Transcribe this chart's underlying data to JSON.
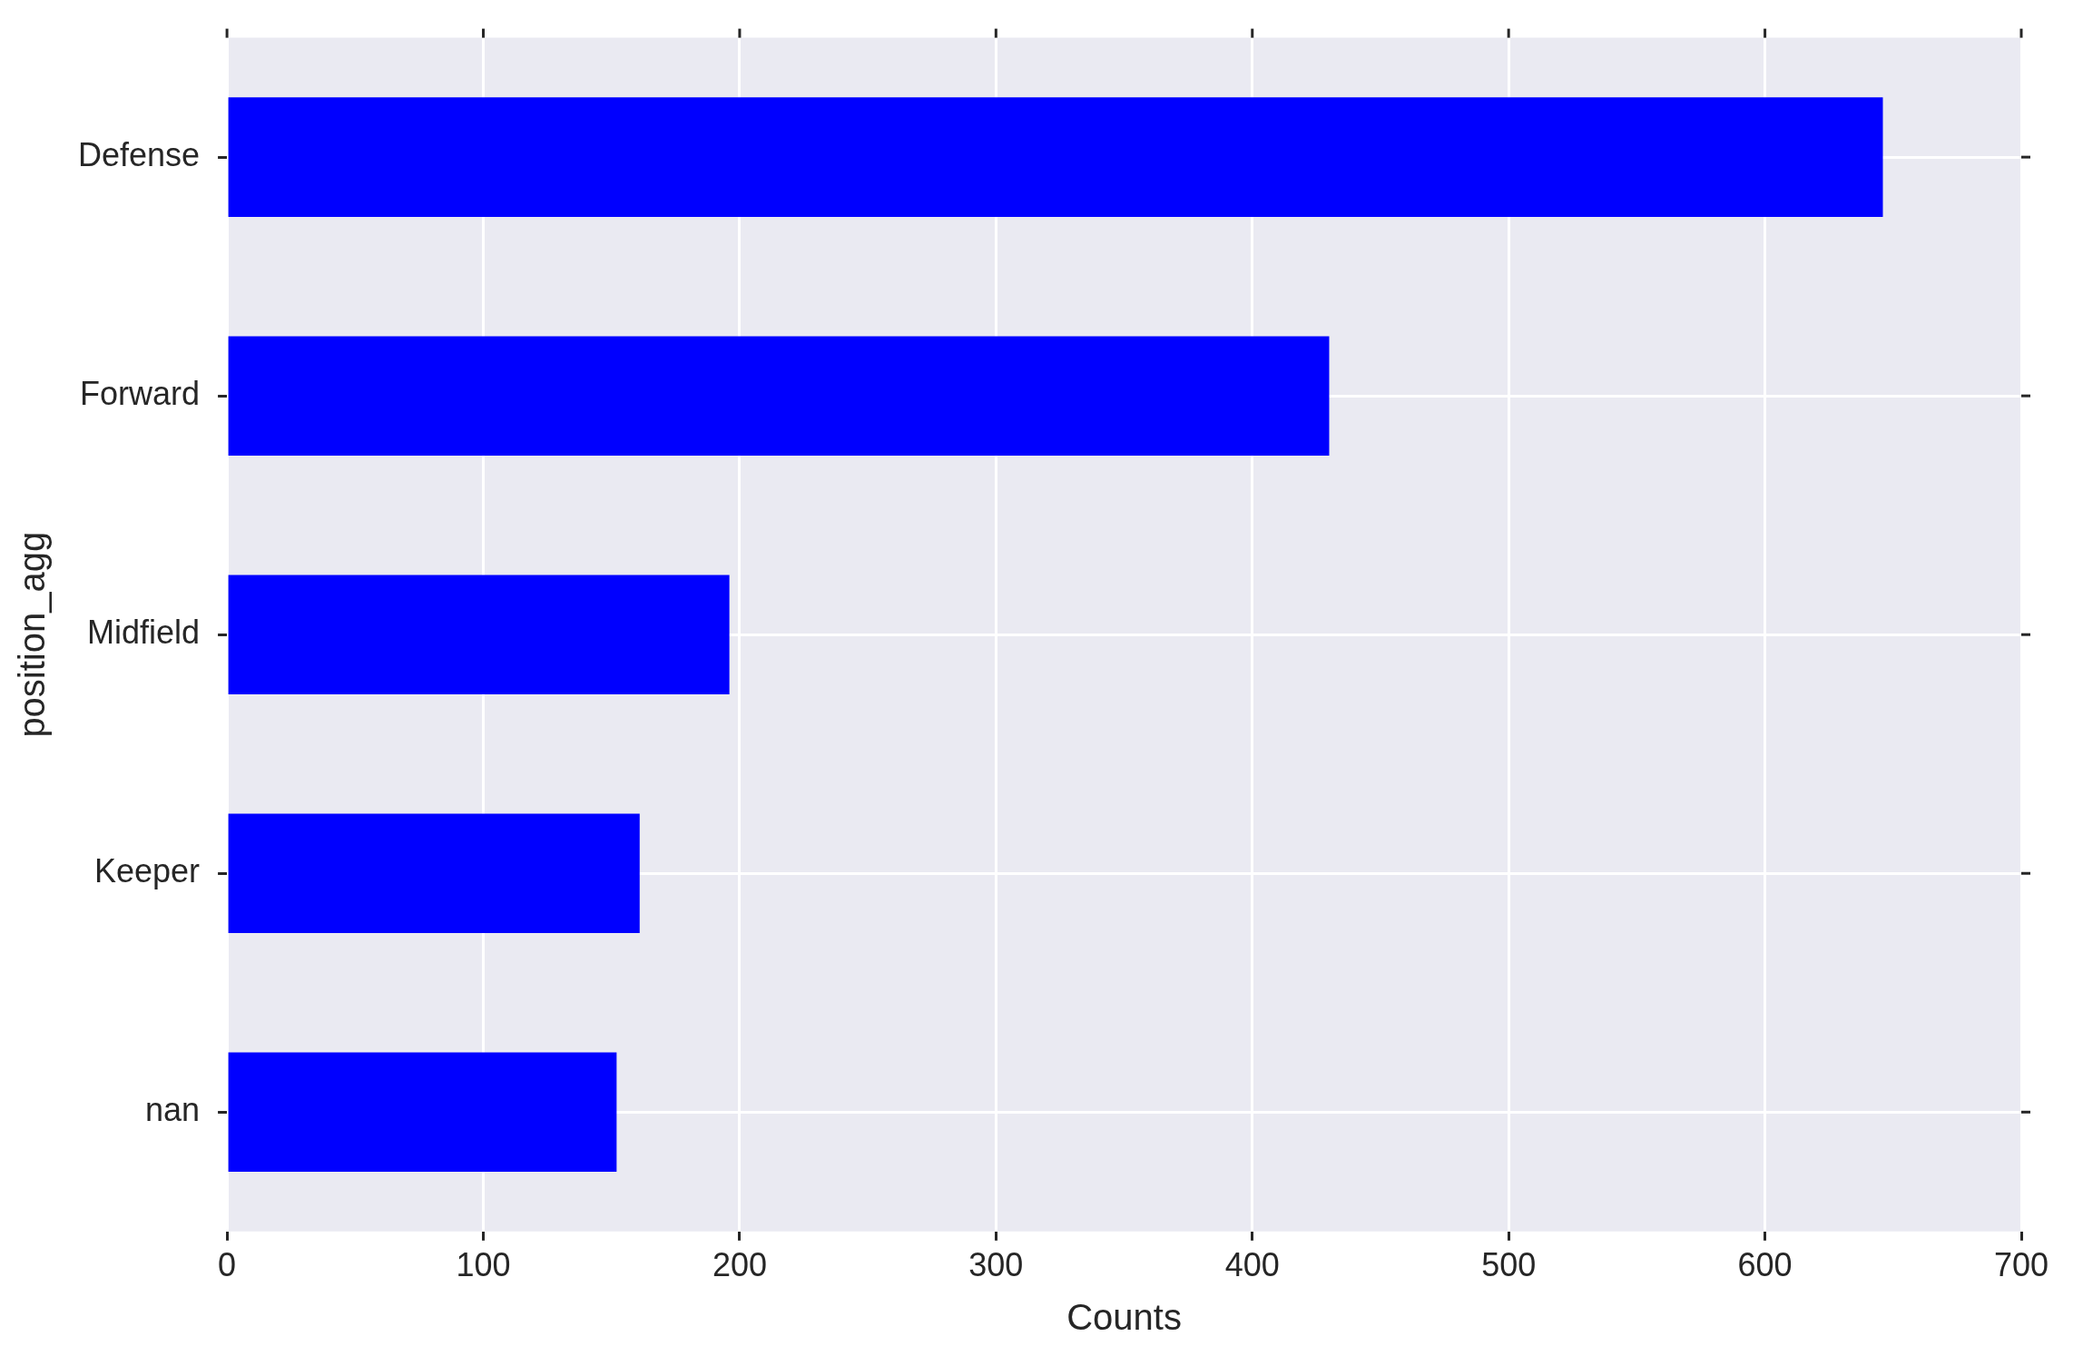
{
  "chart_data": {
    "type": "bar",
    "orientation": "horizontal",
    "xlabel": "Counts",
    "ylabel": "position_agg",
    "categories": [
      "Defense",
      "Forward",
      "Midfield",
      "Keeper",
      "nan"
    ],
    "values": [
      646,
      430,
      196,
      161,
      152
    ],
    "color": "#0000ff",
    "xlim": [
      0,
      700
    ],
    "xticks": [
      0,
      100,
      200,
      300,
      400,
      500,
      600,
      700
    ],
    "grid": true,
    "legend": false
  }
}
